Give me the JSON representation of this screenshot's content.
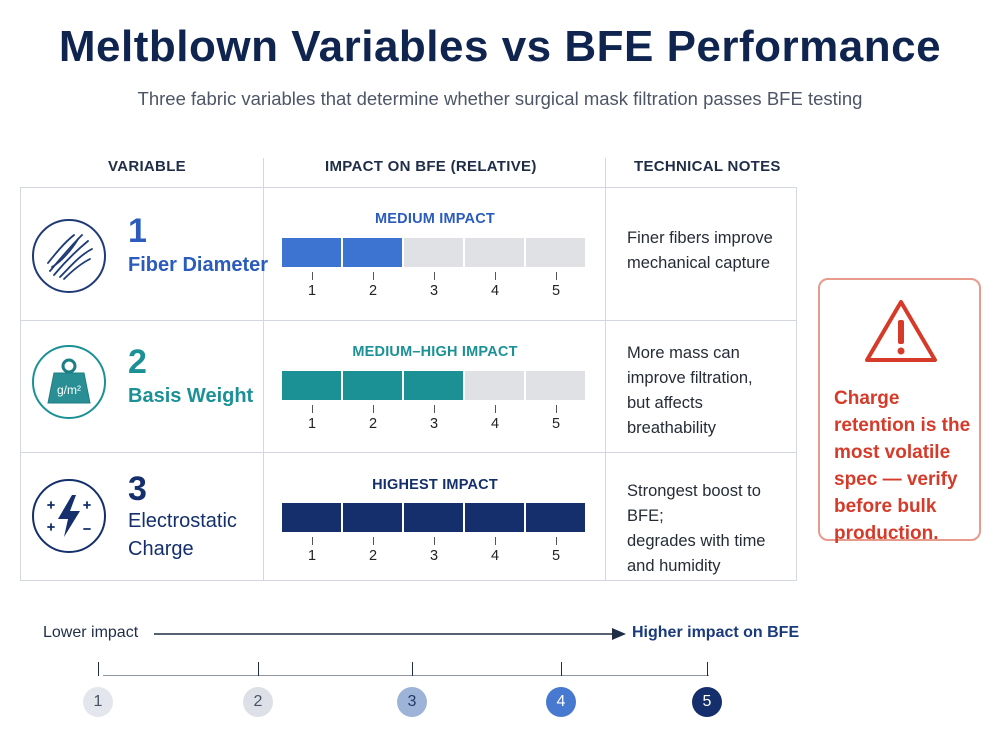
{
  "title": "Meltblown Variables vs BFE Performance",
  "subtitle": "Three fabric variables that determine whether surgical mask filtration passes BFE testing",
  "headers": {
    "variable": "VARIABLE",
    "impact": "IMPACT ON BFE (RELATIVE)",
    "notes": "TECHNICAL NOTES"
  },
  "rows": [
    {
      "number": "1",
      "name_lines": [
        "Fiber Diameter"
      ],
      "icon": "fiber-strands-icon",
      "impact_label": "MEDIUM IMPACT",
      "impact_level": 2,
      "color": "#3e74d1",
      "scale_labels": [
        "1",
        "2",
        "3",
        "4",
        "5"
      ],
      "note_lines": [
        "Finer fibers improve",
        "mechanical capture"
      ]
    },
    {
      "number": "2",
      "name_lines": [
        "Basis Weight"
      ],
      "icon": "weight-icon",
      "icon_label": "g/m²",
      "impact_label": "MEDIUM–HIGH IMPACT",
      "impact_level": 3,
      "color": "#1b9196",
      "scale_labels": [
        "1",
        "2",
        "3",
        "4",
        "5"
      ],
      "note_lines": [
        "More mass can",
        "improve filtration,",
        "but affects",
        "breathability"
      ]
    },
    {
      "number": "3",
      "name_lines": [
        "Electrostatic",
        "Charge"
      ],
      "icon": "electrostatic-charge-icon",
      "impact_label": "HIGHEST IMPACT",
      "impact_level": 5,
      "color": "#142f6c",
      "scale_labels": [
        "1",
        "2",
        "3",
        "4",
        "5"
      ],
      "note_lines": [
        "Strongest boost to BFE;",
        "degrades with time",
        "and humidity"
      ]
    }
  ],
  "warning": {
    "icon": "warning-triangle-icon",
    "text": "Charge retention is the most volatile spec — verify before bulk production.",
    "color": "#d63b2a"
  },
  "bottom_scale": {
    "left_label": "Lower impact",
    "right_label": "Higher impact on BFE",
    "levels": [
      {
        "label": "1",
        "bg": "#e3e6ec",
        "fg": "#4a5263"
      },
      {
        "label": "2",
        "bg": "#dde1e7",
        "fg": "#4a5263"
      },
      {
        "label": "3",
        "bg": "#9db3d8",
        "fg": "#223a66"
      },
      {
        "label": "4",
        "bg": "#4879d0",
        "fg": "#ffffff"
      },
      {
        "label": "5",
        "bg": "#142f6c",
        "fg": "#ffffff"
      }
    ]
  }
}
